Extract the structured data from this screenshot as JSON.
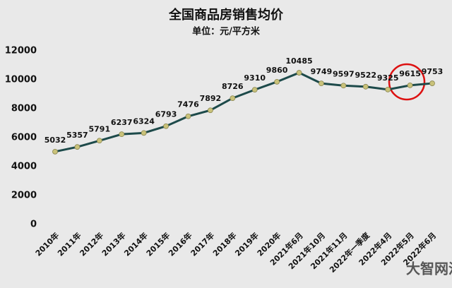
{
  "chart_data": {
    "type": "line",
    "title": "全国商品房销售均价",
    "subtitle": "单位：元/平方米",
    "categories": [
      "2010年",
      "2011年",
      "2012年",
      "2013年",
      "2014年",
      "2015年",
      "2016年",
      "2017年",
      "2018年",
      "2019年",
      "2020年",
      "2021年6月",
      "2021年10月",
      "2021年11月",
      "2022年一季度",
      "2022年4月",
      "2022年5月",
      "2022年6月"
    ],
    "series": [
      {
        "name": "销售均价",
        "color": "#1d4a4a",
        "values": [
          5032,
          5357,
          5791,
          6237,
          6324,
          6793,
          7476,
          7892,
          8726,
          9310,
          9860,
          10485,
          9749,
          9597,
          9522,
          9325,
          9615,
          9753
        ]
      }
    ],
    "marker_color": "#c9c27a",
    "ylim": [
      0,
      12000
    ],
    "yticks": [
      0,
      2000,
      4000,
      6000,
      8000,
      10000,
      12000
    ],
    "grid": false,
    "watermark": "大智网汇"
  }
}
